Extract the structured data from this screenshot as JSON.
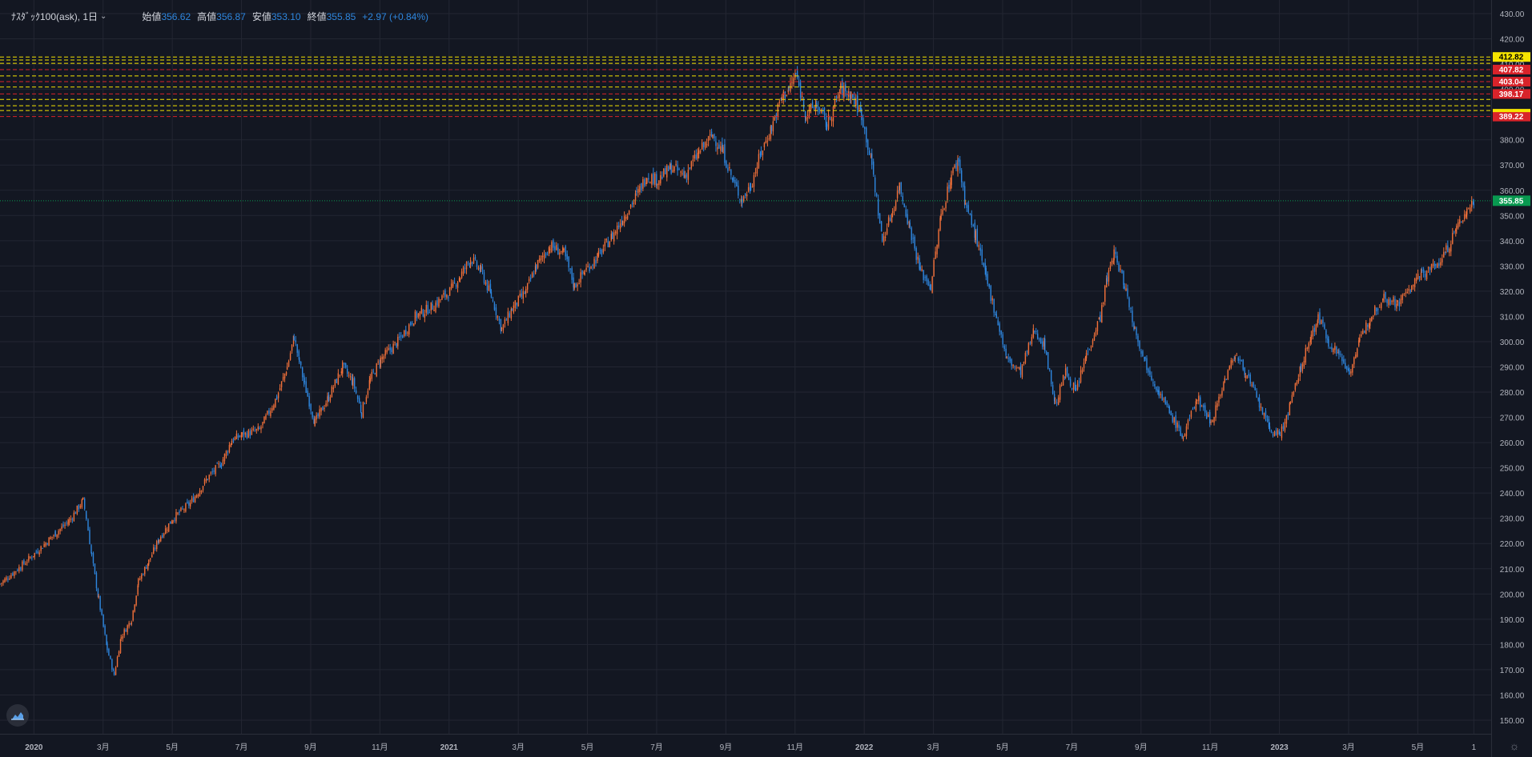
{
  "legend": {
    "symbol": "ﾅｽﾀﾞｯｸ100(ask), 1日",
    "open_label": "始値",
    "open": "356.62",
    "high_label": "高値",
    "high": "356.87",
    "low_label": "安値",
    "low": "353.10",
    "close_label": "終値",
    "close": "355.85",
    "change": "+2.97 (+0.84%)"
  },
  "chart_data": {
    "type": "candlestick",
    "x_axis_labels": [
      {
        "label": "2020",
        "t": 0.98
      },
      {
        "label": "3月",
        "t": 2.98
      },
      {
        "label": "5月",
        "t": 4.98
      },
      {
        "label": "7月",
        "t": 6.98
      },
      {
        "label": "9月",
        "t": 8.98
      },
      {
        "label": "11月",
        "t": 10.98
      },
      {
        "label": "2021",
        "t": 12.98
      },
      {
        "label": "3月",
        "t": 14.98
      },
      {
        "label": "5月",
        "t": 16.98
      },
      {
        "label": "7月",
        "t": 18.98
      },
      {
        "label": "9月",
        "t": 20.98
      },
      {
        "label": "11月",
        "t": 22.98
      },
      {
        "label": "2022",
        "t": 24.98
      },
      {
        "label": "3月",
        "t": 26.98
      },
      {
        "label": "5月",
        "t": 28.98
      },
      {
        "label": "7月",
        "t": 30.98
      },
      {
        "label": "9月",
        "t": 32.98
      },
      {
        "label": "11月",
        "t": 34.98
      },
      {
        "label": "2023",
        "t": 36.98
      },
      {
        "label": "3月",
        "t": 38.98
      },
      {
        "label": "5月",
        "t": 40.98
      },
      {
        "label": "1",
        "t": 42.6
      }
    ],
    "x_range": [
      0,
      43.1
    ],
    "y_ticks": [
      150,
      160,
      170,
      180,
      190,
      200,
      210,
      220,
      230,
      240,
      250,
      260,
      270,
      280,
      290,
      300,
      310,
      320,
      330,
      340,
      350,
      360,
      370,
      380,
      390,
      400,
      410,
      420,
      430
    ],
    "ylim": [
      144.6,
      435.4
    ],
    "grid": true,
    "last_price": 355.85,
    "up_color": "#f0703a",
    "down_color": "#2e86de",
    "price_lines": [
      {
        "price": 412.82,
        "color": "#f5e400",
        "label": "412.82",
        "labeled": true,
        "text_color": "#000000"
      },
      {
        "price": 411.6,
        "color": "#f5e400",
        "label": "",
        "labeled": false
      },
      {
        "price": 410.3,
        "color": "#f5e400",
        "label": "",
        "labeled": false
      },
      {
        "price": 407.82,
        "color": "#d8232a",
        "label": "407.82",
        "labeled": true,
        "text_color": "#ffffff"
      },
      {
        "price": 405.3,
        "color": "#f5e400",
        "label": "",
        "labeled": false
      },
      {
        "price": 403.04,
        "color": "#d8232a",
        "label": "403.04",
        "labeled": true,
        "text_color": "#ffffff"
      },
      {
        "price": 400.9,
        "color": "#f5e400",
        "label": "",
        "labeled": false
      },
      {
        "price": 398.17,
        "color": "#d8232a",
        "label": "398.17",
        "labeled": true,
        "text_color": "#ffffff"
      },
      {
        "price": 396.0,
        "color": "#f5e400",
        "label": "",
        "labeled": false
      },
      {
        "price": 393.5,
        "color": "#f5e400",
        "label": "",
        "labeled": false
      },
      {
        "price": 391.6,
        "color": "#f5e400",
        "label": "",
        "labeled": false
      },
      {
        "price": 389.22,
        "color": "#d8232a",
        "label": "389.22",
        "labeled": true,
        "text_color": "#ffffff"
      }
    ],
    "price_path": [
      [
        0.0,
        204
      ],
      [
        0.6,
        211
      ],
      [
        1.0,
        216
      ],
      [
        1.6,
        224
      ],
      [
        2.0,
        229
      ],
      [
        2.4,
        237
      ],
      [
        2.5,
        230
      ],
      [
        2.65,
        215
      ],
      [
        2.85,
        198
      ],
      [
        3.1,
        178
      ],
      [
        3.3,
        168
      ],
      [
        3.5,
        183
      ],
      [
        3.8,
        190
      ],
      [
        4.0,
        205
      ],
      [
        4.3,
        213
      ],
      [
        4.6,
        222
      ],
      [
        5.0,
        230
      ],
      [
        5.5,
        236
      ],
      [
        6.0,
        246
      ],
      [
        6.4,
        252
      ],
      [
        6.7,
        261
      ],
      [
        7.0,
        263
      ],
      [
        7.5,
        265
      ],
      [
        8.0,
        278
      ],
      [
        8.3,
        290
      ],
      [
        8.5,
        302
      ],
      [
        8.65,
        292
      ],
      [
        8.8,
        283
      ],
      [
        9.1,
        268
      ],
      [
        9.5,
        278
      ],
      [
        9.9,
        290
      ],
      [
        10.2,
        284
      ],
      [
        10.45,
        272
      ],
      [
        10.7,
        285
      ],
      [
        11.0,
        293
      ],
      [
        11.5,
        300
      ],
      [
        12.0,
        310
      ],
      [
        12.5,
        314
      ],
      [
        13.0,
        320
      ],
      [
        13.3,
        326
      ],
      [
        13.6,
        333
      ],
      [
        13.9,
        328
      ],
      [
        14.2,
        318
      ],
      [
        14.5,
        305
      ],
      [
        14.8,
        313
      ],
      [
        15.2,
        320
      ],
      [
        15.5,
        330
      ],
      [
        15.9,
        338
      ],
      [
        16.3,
        335
      ],
      [
        16.6,
        322
      ],
      [
        16.9,
        328
      ],
      [
        17.3,
        334
      ],
      [
        17.7,
        342
      ],
      [
        18.0,
        349
      ],
      [
        18.4,
        358
      ],
      [
        18.7,
        366
      ],
      [
        19.0,
        364
      ],
      [
        19.4,
        369
      ],
      [
        19.8,
        366
      ],
      [
        20.2,
        375
      ],
      [
        20.6,
        382
      ],
      [
        20.9,
        375
      ],
      [
        21.2,
        363
      ],
      [
        21.45,
        356
      ],
      [
        21.7,
        362
      ],
      [
        22.0,
        375
      ],
      [
        22.3,
        385
      ],
      [
        22.6,
        397
      ],
      [
        22.8,
        400
      ],
      [
        23.0,
        406
      ],
      [
        23.3,
        390
      ],
      [
        23.6,
        394
      ],
      [
        23.9,
        386
      ],
      [
        24.3,
        400
      ],
      [
        24.6,
        398
      ],
      [
        24.9,
        390
      ],
      [
        25.2,
        370
      ],
      [
        25.5,
        340
      ],
      [
        25.8,
        352
      ],
      [
        26.0,
        362
      ],
      [
        26.3,
        345
      ],
      [
        26.6,
        328
      ],
      [
        26.9,
        322
      ],
      [
        27.2,
        350
      ],
      [
        27.5,
        366
      ],
      [
        27.7,
        372
      ],
      [
        27.9,
        355
      ],
      [
        28.2,
        342
      ],
      [
        28.5,
        325
      ],
      [
        28.8,
        310
      ],
      [
        29.1,
        293
      ],
      [
        29.5,
        288
      ],
      [
        29.9,
        305
      ],
      [
        30.2,
        298
      ],
      [
        30.5,
        275
      ],
      [
        30.8,
        288
      ],
      [
        31.1,
        280
      ],
      [
        31.4,
        295
      ],
      [
        31.8,
        310
      ],
      [
        32.0,
        325
      ],
      [
        32.2,
        335
      ],
      [
        32.5,
        323
      ],
      [
        32.8,
        305
      ],
      [
        33.1,
        292
      ],
      [
        33.5,
        280
      ],
      [
        33.8,
        272
      ],
      [
        34.2,
        262
      ],
      [
        34.6,
        278
      ],
      [
        35.0,
        268
      ],
      [
        35.4,
        285
      ],
      [
        35.7,
        295
      ],
      [
        36.0,
        288
      ],
      [
        36.4,
        275
      ],
      [
        36.7,
        265
      ],
      [
        37.0,
        263
      ],
      [
        37.3,
        275
      ],
      [
        37.6,
        290
      ],
      [
        37.9,
        302
      ],
      [
        38.1,
        310
      ],
      [
        38.4,
        300
      ],
      [
        38.7,
        295
      ],
      [
        39.0,
        288
      ],
      [
        39.3,
        300
      ],
      [
        39.6,
        310
      ],
      [
        40.0,
        318
      ],
      [
        40.4,
        315
      ],
      [
        40.8,
        322
      ],
      [
        41.1,
        327
      ],
      [
        41.5,
        330
      ],
      [
        41.8,
        336
      ],
      [
        42.1,
        345
      ],
      [
        42.4,
        352
      ],
      [
        42.6,
        356
      ]
    ]
  },
  "ui": {
    "logo_icon": "tradingview-cloud-icon",
    "settings_icon": "gear-icon",
    "settings_glyph": "☼"
  }
}
